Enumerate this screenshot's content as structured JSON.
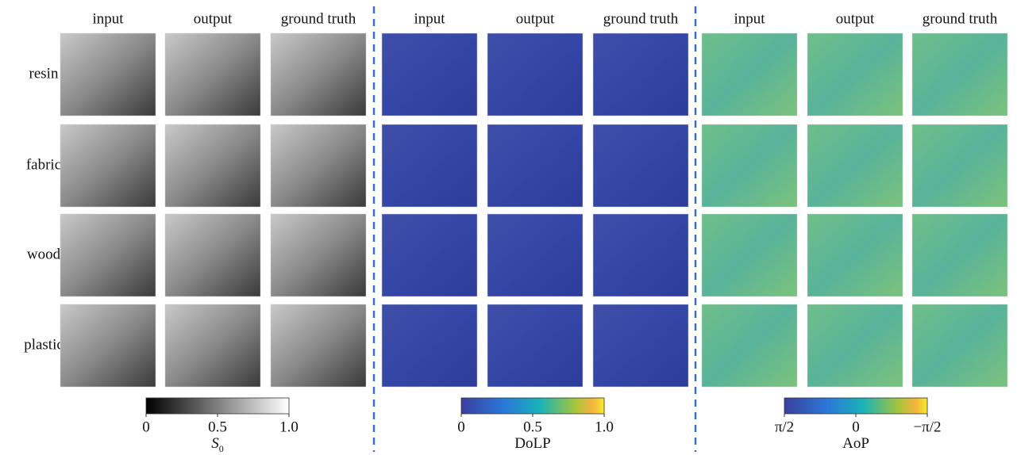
{
  "rows": [
    "resin",
    "fabric",
    "wood",
    "plastic"
  ],
  "panels": [
    {
      "columns": [
        "input",
        "output",
        "ground truth"
      ],
      "colorbar": {
        "ticks": [
          "0",
          "0.5",
          "1.0"
        ],
        "label": "S",
        "label_subscript": "0"
      }
    },
    {
      "columns": [
        "input",
        "output",
        "ground truth"
      ],
      "colorbar": {
        "ticks": [
          "0",
          "0.5",
          "1.0"
        ],
        "label": "DoLP"
      }
    },
    {
      "columns": [
        "input",
        "output",
        "ground truth"
      ],
      "colorbar": {
        "ticks": [
          "π/2",
          "0",
          "−π/2"
        ],
        "label": "AoP"
      }
    }
  ]
}
